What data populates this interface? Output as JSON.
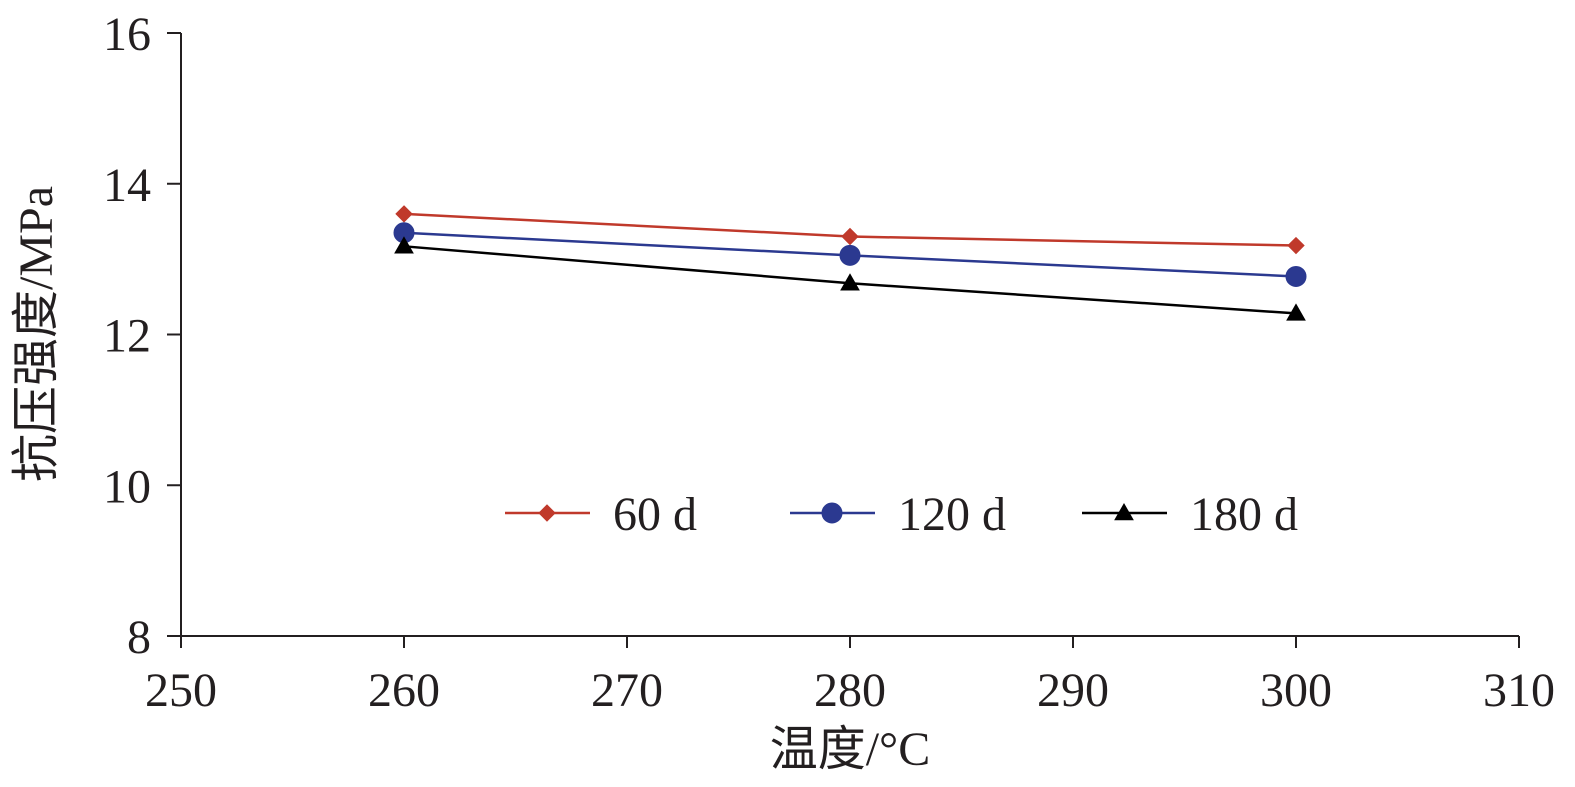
{
  "chart_data": {
    "type": "line",
    "title": "",
    "xlabel": "温度/°C",
    "ylabel": "抗压强度/MPa",
    "xlim": [
      250,
      310
    ],
    "ylim": [
      8,
      16
    ],
    "x_ticks": [
      250,
      260,
      270,
      280,
      290,
      300,
      310
    ],
    "y_ticks": [
      8,
      10,
      12,
      14,
      16
    ],
    "grid": false,
    "legend_position": "center",
    "series": [
      {
        "name": "60 d",
        "marker": "diamond",
        "color": "#c0392b",
        "x": [
          260,
          280,
          300
        ],
        "y": [
          13.6,
          13.3,
          13.18
        ]
      },
      {
        "name": "120 d",
        "marker": "circle",
        "color": "#2b3990",
        "x": [
          260,
          280,
          300
        ],
        "y": [
          13.35,
          13.05,
          12.77
        ]
      },
      {
        "name": "180 d",
        "marker": "triangle",
        "color": "#000000",
        "x": [
          260,
          280,
          300
        ],
        "y": [
          13.17,
          12.68,
          12.28
        ]
      }
    ]
  }
}
